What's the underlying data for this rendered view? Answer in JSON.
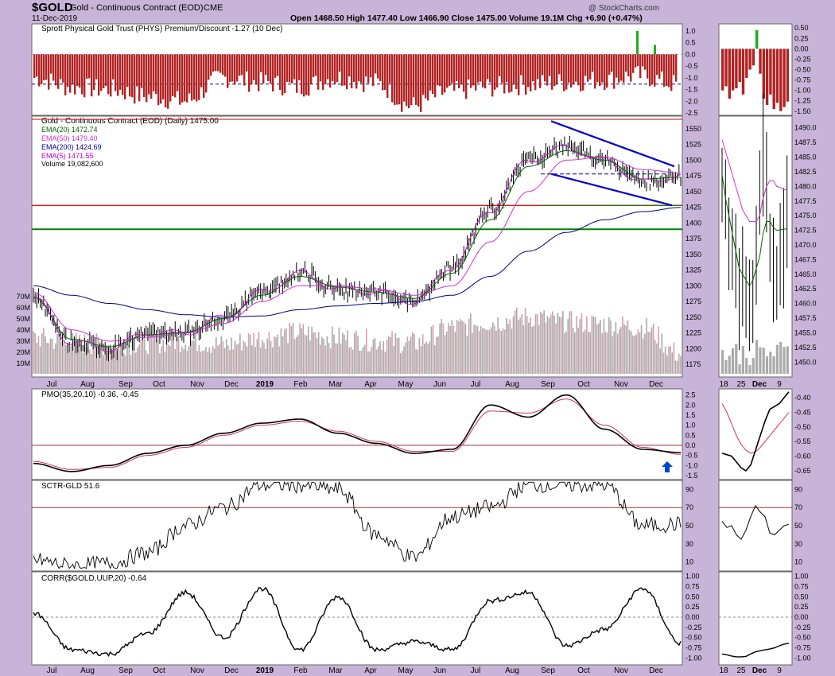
{
  "header": {
    "symbol": "$GOLD",
    "description": "Gold - Continuous Contract (EOD)",
    "exchange": "CME",
    "date": "11-Dec-2019",
    "watermark": "@ StockCharts.com",
    "quote": "Open 1468.50  High 1477.40  Low 1466.90  Close 1475.00  Volume 19.1M  Chg +6.90 (+0.47%)"
  },
  "colors": {
    "background": "#c9b4d9",
    "panel": "#ffffff",
    "price_bar": "#000000",
    "ema20": "#006400",
    "ema50": "#cc33cc",
    "ema200": "#000080",
    "ema5": "#cc00cc",
    "trendline": "#0000cc",
    "resistance": "#cc0000",
    "support": "#008000",
    "phys_neg": "#b22222",
    "phys_pos": "#22aa22",
    "volume_up": "#aaaaaa",
    "volume_down": "#d4a0b0",
    "pmo_line": "#000000",
    "pmo_signal": "#cc3366",
    "arrow": "#0044cc"
  },
  "x_axis": {
    "labels": [
      "Jul",
      "Aug",
      "Sep",
      "Oct",
      "Nov",
      "Dec",
      "2019",
      "Feb",
      "Mar",
      "Apr",
      "May",
      "Jun",
      "Jul",
      "Aug",
      "Sep",
      "Oct",
      "Nov",
      "Dec"
    ],
    "zoom_labels": [
      "18",
      "25",
      "Dec",
      "9"
    ]
  },
  "chart_data": [
    {
      "type": "bar",
      "title": "Sprott Physical Gold Trust (PHYS) Premium/Discount -1.27 (10 Dec)",
      "y_ticks": [
        "1.0",
        "0.5",
        "0.0",
        "-0.5",
        "-1.0",
        "-1.5",
        "-2.0",
        "-2.5"
      ],
      "zoom_y_ticks": [
        "0.50",
        "0.25",
        "0.00",
        "-0.25",
        "-0.50",
        "-0.75",
        "-1.00",
        "-1.25",
        "-1.50"
      ],
      "ylim": [
        -2.6,
        1.3
      ],
      "reference_line": -1.27,
      "x": [
        "2018-07",
        "2018-08",
        "2018-09",
        "2018-10",
        "2018-11",
        "2018-12",
        "2019-01",
        "2019-02",
        "2019-03",
        "2019-04",
        "2019-05",
        "2019-06",
        "2019-07",
        "2019-08",
        "2019-09",
        "2019-10",
        "2019-11",
        "2019-12"
      ],
      "values": [
        -1.0,
        -1.4,
        -1.5,
        -1.8,
        -2.0,
        -1.0,
        -1.2,
        -1.4,
        -1.0,
        -1.2,
        -2.2,
        -1.6,
        -1.4,
        -1.3,
        -1.2,
        -1.1,
        -0.9,
        -1.27
      ]
    },
    {
      "type": "line",
      "title": "Gold - Continuous Contract (EOD) (Daily) 1475.00",
      "legend": [
        "EMA(20) 1472.74",
        "EMA(50) 1479.40",
        "EMA(200) 1424.69",
        "EMA(5) 1471.55",
        "Volume 19,082,600"
      ],
      "y_ticks": [
        "1550",
        "1525",
        "1500",
        "1475",
        "1450",
        "1425",
        "1400",
        "1375",
        "1350",
        "1325",
        "1300",
        "1275",
        "1250",
        "1225",
        "1200",
        "1175"
      ],
      "volume_ticks": [
        "70M",
        "60M",
        "50M",
        "40M",
        "30M",
        "20M",
        "10M"
      ],
      "zoom_y_ticks": [
        "1490.0",
        "1487.5",
        "1485.0",
        "1482.5",
        "1480.0",
        "1477.5",
        "1475.0",
        "1472.5",
        "1470.0",
        "1467.5",
        "1465.0",
        "1462.5",
        "1460.0",
        "1457.5",
        "1455.0",
        "1452.5",
        "1450.0"
      ],
      "ylim": [
        1160,
        1570
      ],
      "horizontal_lines": [
        1565,
        1428,
        1390
      ],
      "x": [
        "2018-07",
        "2018-08",
        "2018-09",
        "2018-10",
        "2018-11",
        "2018-12",
        "2019-01",
        "2019-02",
        "2019-03",
        "2019-04",
        "2019-05",
        "2019-06",
        "2019-07",
        "2019-08",
        "2019-09",
        "2019-10",
        "2019-11",
        "2019-12"
      ],
      "series": [
        {
          "name": "Gold",
          "values": [
            1280,
            1210,
            1200,
            1225,
            1225,
            1250,
            1290,
            1320,
            1295,
            1290,
            1275,
            1330,
            1420,
            1500,
            1520,
            1500,
            1465,
            1475
          ]
        },
        {
          "name": "EMA(200)",
          "values": [
            1300,
            1285,
            1272,
            1262,
            1254,
            1250,
            1252,
            1262,
            1268,
            1272,
            1275,
            1285,
            1315,
            1355,
            1385,
            1405,
            1418,
            1424.69
          ]
        },
        {
          "name": "EMA(50)",
          "values": [
            1290,
            1230,
            1212,
            1218,
            1225,
            1240,
            1275,
            1300,
            1300,
            1295,
            1285,
            1300,
            1370,
            1450,
            1500,
            1505,
            1485,
            1479.4
          ]
        },
        {
          "name": "EMA(20)",
          "values": [
            1282,
            1215,
            1203,
            1222,
            1226,
            1248,
            1285,
            1315,
            1298,
            1290,
            1280,
            1320,
            1405,
            1490,
            1515,
            1500,
            1470,
            1472.74
          ]
        }
      ],
      "volume": [
        35,
        30,
        28,
        30,
        32,
        28,
        35,
        40,
        35,
        32,
        30,
        45,
        50,
        55,
        50,
        48,
        45,
        19
      ]
    },
    {
      "type": "line",
      "title": "PMO(35,20,10) -0.36, -0.45",
      "y_ticks": [
        "2.5",
        "2.0",
        "1.5",
        "1.0",
        "0.5",
        "0.0",
        "-0.5",
        "-1.0",
        "-1.5"
      ],
      "zoom_y_ticks": [
        "-0.40",
        "-0.45",
        "-0.50",
        "-0.55",
        "-0.60",
        "-0.65"
      ],
      "ylim": [
        -1.7,
        2.8
      ],
      "x": [
        "2018-07",
        "2018-08",
        "2018-09",
        "2018-10",
        "2018-11",
        "2018-12",
        "2019-01",
        "2019-02",
        "2019-03",
        "2019-04",
        "2019-05",
        "2019-06",
        "2019-07",
        "2019-08",
        "2019-09",
        "2019-10",
        "2019-11",
        "2019-12"
      ],
      "series": [
        {
          "name": "PMO",
          "values": [
            -0.9,
            -1.3,
            -1.0,
            -0.4,
            0.0,
            0.6,
            1.1,
            1.3,
            0.6,
            0.1,
            -0.4,
            -0.2,
            2.0,
            1.4,
            2.5,
            0.8,
            -0.2,
            -0.36
          ]
        },
        {
          "name": "Signal",
          "values": [
            -0.8,
            -1.2,
            -1.1,
            -0.5,
            -0.1,
            0.5,
            1.0,
            1.2,
            0.7,
            0.2,
            -0.3,
            -0.3,
            1.7,
            1.6,
            2.3,
            1.0,
            -0.1,
            -0.45
          ]
        }
      ]
    },
    {
      "type": "line",
      "title": "SCTR-GLD 51.6",
      "y_ticks": [
        "90",
        "70",
        "50",
        "30",
        "10"
      ],
      "ylim": [
        0,
        100
      ],
      "reference_line": 70,
      "x": [
        "2018-07",
        "2018-08",
        "2018-09",
        "2018-10",
        "2018-11",
        "2018-12",
        "2019-01",
        "2019-02",
        "2019-03",
        "2019-04",
        "2019-05",
        "2019-06",
        "2019-07",
        "2019-08",
        "2019-09",
        "2019-10",
        "2019-11",
        "2019-12"
      ],
      "values": [
        12,
        6,
        8,
        20,
        50,
        70,
        95,
        95,
        90,
        40,
        15,
        60,
        70,
        95,
        95,
        95,
        50,
        51.6
      ]
    },
    {
      "type": "line",
      "title": "CORR($GOLD,UUP,20) -0.64",
      "y_ticks": [
        "1.00",
        "0.75",
        "0.50",
        "0.25",
        "0.00",
        "-0.25",
        "-0.50",
        "-0.75",
        "-1.00"
      ],
      "ylim": [
        -1.05,
        1.05
      ],
      "reference_line": 0,
      "x": [
        "2018-07",
        "2018-08",
        "2018-09",
        "2018-10",
        "2018-11",
        "2018-12",
        "2019-01",
        "2019-02",
        "2019-03",
        "2019-04",
        "2019-05",
        "2019-06",
        "2019-07",
        "2019-08",
        "2019-09",
        "2019-10",
        "2019-11",
        "2019-12"
      ],
      "values": [
        0.1,
        -0.8,
        -0.9,
        -0.4,
        0.6,
        -0.5,
        0.7,
        -0.8,
        0.5,
        -0.8,
        -0.6,
        -0.8,
        0.4,
        0.6,
        -0.7,
        -0.3,
        0.7,
        -0.64
      ]
    }
  ]
}
